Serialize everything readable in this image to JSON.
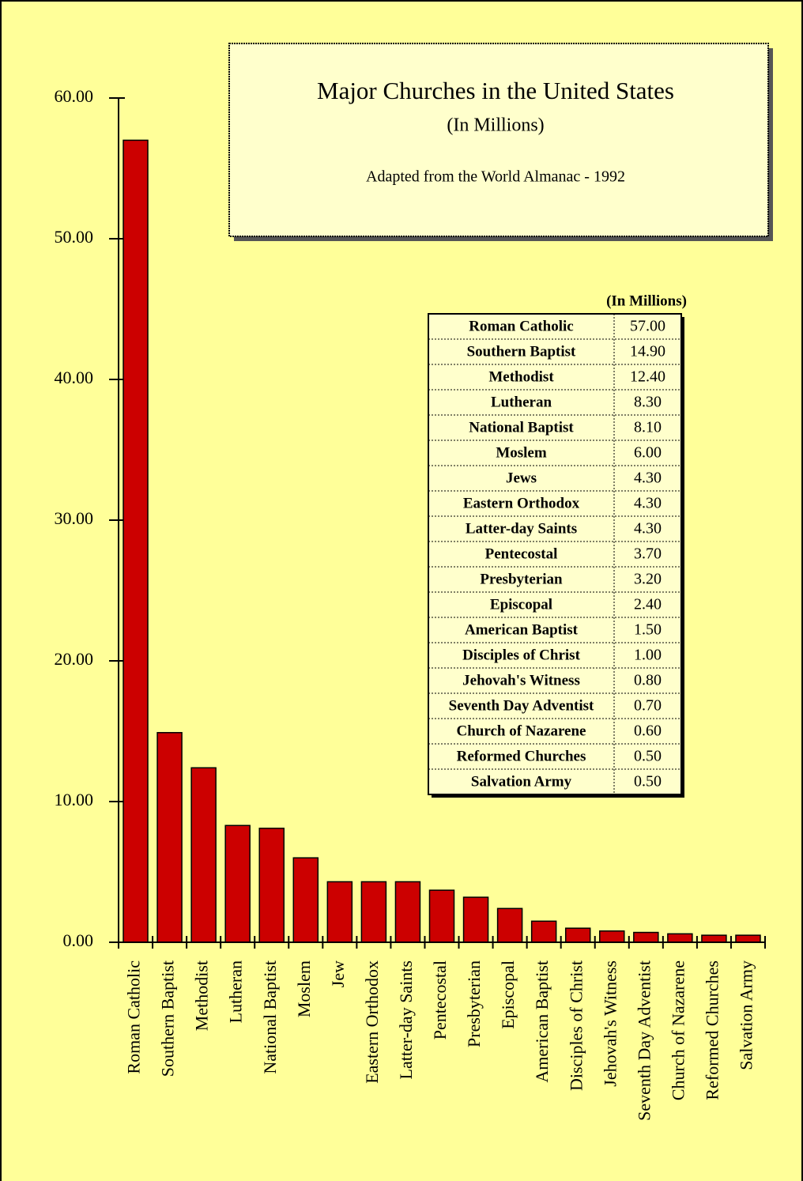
{
  "chart_data": {
    "type": "bar",
    "title": "Major Churches in the United States",
    "subtitle": "(In Millions)",
    "note": "Adapted from the World Almanac - 1992",
    "categories": [
      "Roman Catholic",
      "Southern Baptist",
      "Methodist",
      "Lutheran",
      "National Baptist",
      "Moslem",
      "Jew",
      "Eastern Orthodox",
      "Latter-day Saints",
      "Pentecostal",
      "Presbyterian",
      "Episcopal",
      "American Baptist",
      "Disciples of Christ",
      "Jehovah's Witness",
      "Seventh Day Adventist",
      "Church of Nazarene",
      "Reformed Churches",
      "Salvation Army"
    ],
    "values": [
      57.0,
      14.9,
      12.4,
      8.3,
      8.1,
      6.0,
      4.3,
      4.3,
      4.3,
      3.7,
      3.2,
      2.4,
      1.5,
      1.0,
      0.8,
      0.7,
      0.6,
      0.5,
      0.5
    ],
    "color": "#cc0000",
    "ylim": [
      0,
      60
    ],
    "yticks": [
      {
        "value": 0,
        "label": "0.00"
      },
      {
        "value": 10,
        "label": "10.00"
      },
      {
        "value": 20,
        "label": "20.00"
      },
      {
        "value": 30,
        "label": "30.00"
      },
      {
        "value": 40,
        "label": "40.00"
      },
      {
        "value": 50,
        "label": "50.00"
      },
      {
        "value": 60,
        "label": "60.00"
      }
    ],
    "table": {
      "header": "(In Millions)",
      "rows": [
        [
          "Roman Catholic",
          "57.00"
        ],
        [
          "Southern Baptist",
          "14.90"
        ],
        [
          "Methodist",
          "12.40"
        ],
        [
          "Lutheran",
          "8.30"
        ],
        [
          "National Baptist",
          "8.10"
        ],
        [
          "Moslem",
          "6.00"
        ],
        [
          "Jews",
          "4.30"
        ],
        [
          "Eastern Orthodox",
          "4.30"
        ],
        [
          "Latter-day Saints",
          "4.30"
        ],
        [
          "Pentecostal",
          "3.70"
        ],
        [
          "Presbyterian",
          "3.20"
        ],
        [
          "Episcopal",
          "2.40"
        ],
        [
          "American Baptist",
          "1.50"
        ],
        [
          "Disciples of Christ",
          "1.00"
        ],
        [
          "Jehovah's Witness",
          "0.80"
        ],
        [
          "Seventh Day Adventist",
          "0.70"
        ],
        [
          "Church of Nazarene",
          "0.60"
        ],
        [
          "Reformed Churches",
          "0.50"
        ],
        [
          "Salvation Army",
          "0.50"
        ]
      ]
    }
  }
}
